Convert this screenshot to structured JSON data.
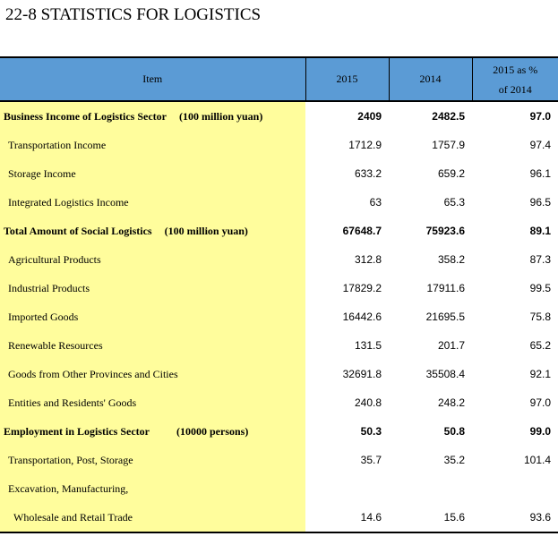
{
  "title": "22-8  STATISTICS FOR LOGISTICS",
  "columns": {
    "item": "Item",
    "y2015": "2015",
    "y2014": "2014",
    "pct_line1": "2015 as %",
    "pct_line2": "of 2014"
  },
  "rows": [
    {
      "label": "Business Income of Logistics Sector",
      "unit": "(100 million yuan)",
      "v2015": "2409",
      "v2014": "2482.5",
      "pct": "97.0"
    },
    {
      "label": "Transportation Income",
      "v2015": "1712.9",
      "v2014": "1757.9",
      "pct": "97.4"
    },
    {
      "label": "Storage Income",
      "v2015": "633.2",
      "v2014": "659.2",
      "pct": "96.1"
    },
    {
      "label": "Integrated Logistics Income",
      "v2015": "63",
      "v2014": "65.3",
      "pct": "96.5"
    },
    {
      "label": "Total Amount of Social Logistics",
      "unit": "(100 million yuan)",
      "v2015": "67648.7",
      "v2014": "75923.6",
      "pct": "89.1"
    },
    {
      "label": "Agricultural Products",
      "v2015": "312.8",
      "v2014": "358.2",
      "pct": "87.3"
    },
    {
      "label": "Industrial Products",
      "v2015": "17829.2",
      "v2014": "17911.6",
      "pct": "99.5"
    },
    {
      "label": "Imported Goods",
      "v2015": "16442.6",
      "v2014": "21695.5",
      "pct": "75.8"
    },
    {
      "label": "Renewable Resources",
      "v2015": "131.5",
      "v2014": "201.7",
      "pct": "65.2"
    },
    {
      "label": "Goods from Other Provinces and Cities",
      "v2015": "32691.8",
      "v2014": "35508.4",
      "pct": "92.1"
    },
    {
      "label": "Entities and Residents' Goods",
      "v2015": "240.8",
      "v2014": "248.2",
      "pct": "97.0"
    },
    {
      "label": "Employment in Logistics Sector",
      "unit": "(10000 persons)",
      "v2015": "50.3",
      "v2014": "50.8",
      "pct": "99.0"
    },
    {
      "label": "Transportation, Post, Storage",
      "v2015": "35.7",
      "v2014": "35.2",
      "pct": "101.4"
    },
    {
      "label": "Excavation, Manufacturing,",
      "v2015": "",
      "v2014": "",
      "pct": ""
    },
    {
      "label": "Wholesale and Retail Trade",
      "v2015": "14.6",
      "v2014": "15.6",
      "pct": "93.6"
    }
  ]
}
